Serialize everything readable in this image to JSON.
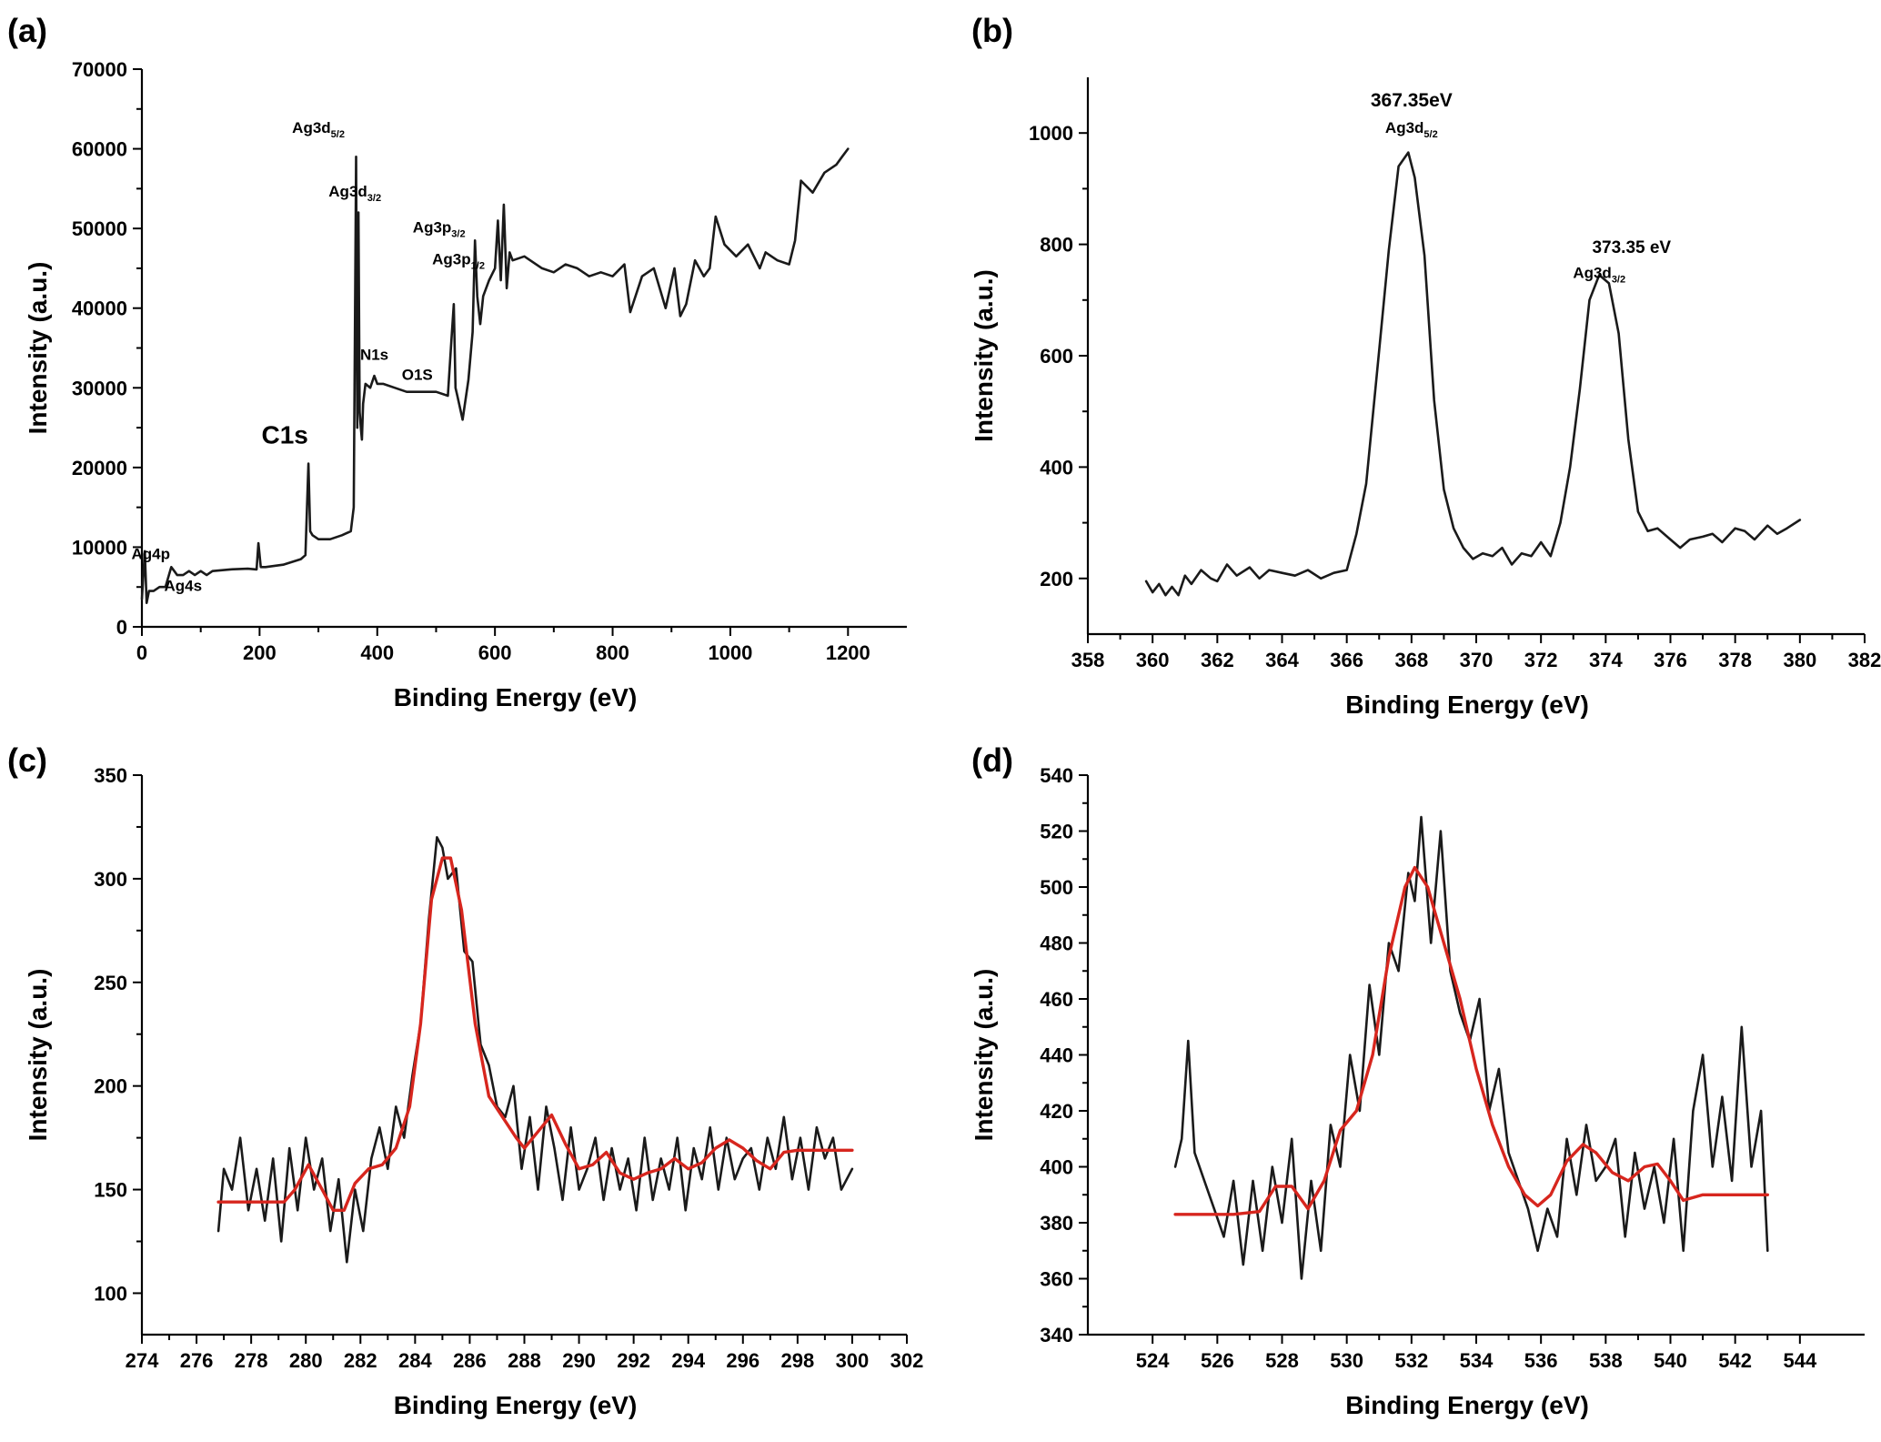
{
  "chart_data": [
    {
      "type": "line",
      "panel": "(a)",
      "xlabel": "Binding Energy (eV)",
      "ylabel": "Intensity (a.u.)",
      "xlim": [
        0,
        1300
      ],
      "ylim": [
        0,
        70000
      ],
      "xticks": [
        0,
        200,
        400,
        600,
        800,
        1000,
        1200
      ],
      "yticks": [
        0,
        10000,
        20000,
        30000,
        40000,
        50000,
        60000,
        70000
      ],
      "annotations": [
        {
          "text": "Ag3d",
          "sub": "5/2",
          "x": 300,
          "y": 62000
        },
        {
          "text": "Ag3d",
          "sub": "3/2",
          "x": 362,
          "y": 54000
        },
        {
          "text": "Ag3p",
          "sub": "3/2",
          "x": 505,
          "y": 49500
        },
        {
          "text": "Ag3p",
          "sub": "1/2",
          "x": 538,
          "y": 45500
        },
        {
          "text": "C1s",
          "x": 243,
          "y": 23000
        },
        {
          "text": "N1s",
          "x": 395,
          "y": 33500
        },
        {
          "text": "O1S",
          "x": 468,
          "y": 31000
        },
        {
          "text": "Ag4p",
          "x": 15,
          "y": 8500
        },
        {
          "text": "Ag4s",
          "x": 70,
          "y": 4500
        }
      ],
      "series": [
        {
          "color": "#1a1a1a",
          "x": [
            0,
            5,
            8,
            12,
            20,
            30,
            40,
            50,
            55,
            60,
            70,
            80,
            90,
            100,
            110,
            120,
            150,
            180,
            195,
            198,
            202,
            210,
            240,
            270,
            278,
            283,
            286,
            290,
            300,
            320,
            340,
            355,
            360,
            364,
            366,
            368,
            370,
            372,
            374,
            376,
            380,
            388,
            395,
            400,
            410,
            430,
            450,
            480,
            500,
            520,
            526,
            530,
            533,
            536,
            545,
            555,
            562,
            566,
            570,
            575,
            580,
            590,
            600,
            605,
            610,
            615,
            620,
            625,
            630,
            650,
            680,
            700,
            720,
            740,
            760,
            780,
            800,
            820,
            830,
            850,
            870,
            890,
            905,
            915,
            925,
            940,
            955,
            965,
            975,
            990,
            1010,
            1030,
            1050,
            1060,
            1080,
            1100,
            1110,
            1120,
            1140,
            1160,
            1180,
            1190,
            1200
          ],
          "y": [
            3500,
            9500,
            3000,
            4500,
            4500,
            5000,
            5000,
            7500,
            7000,
            6500,
            6500,
            7000,
            6500,
            7000,
            6500,
            7000,
            7200,
            7300,
            7200,
            10500,
            7500,
            7500,
            7800,
            8500,
            9000,
            20500,
            12000,
            11500,
            11000,
            11000,
            11500,
            12000,
            15000,
            59000,
            25000,
            52000,
            27000,
            25000,
            23500,
            28000,
            30500,
            30000,
            31500,
            30500,
            30500,
            30000,
            29500,
            29500,
            29500,
            29000,
            36000,
            40500,
            30000,
            29000,
            26000,
            31000,
            37000,
            48500,
            41500,
            38000,
            41500,
            43500,
            45000,
            51000,
            43500,
            53000,
            42500,
            47000,
            46000,
            46500,
            45000,
            44500,
            45500,
            45000,
            44000,
            44500,
            44000,
            45500,
            39500,
            44000,
            45000,
            40000,
            45000,
            39000,
            40500,
            46000,
            44000,
            45000,
            51500,
            48000,
            46500,
            48000,
            45000,
            47000,
            46000,
            45500,
            48500,
            56000,
            54500,
            57000,
            58000,
            59000,
            60000
          ]
        }
      ]
    },
    {
      "type": "line",
      "panel": "(b)",
      "xlabel": "Binding Energy (eV)",
      "ylabel": "Intensity (a.u.)",
      "xlim": [
        358,
        382
      ],
      "ylim": [
        100,
        1100
      ],
      "xticks": [
        358,
        360,
        362,
        364,
        366,
        368,
        370,
        372,
        374,
        376,
        378,
        380,
        382
      ],
      "yticks": [
        200,
        400,
        600,
        800,
        1000
      ],
      "annotations": [
        {
          "text": "367.35eV",
          "x": 368,
          "y": 1048,
          "size": 21
        },
        {
          "text": "Ag3d",
          "sub": "5/2",
          "x": 368,
          "y": 1000
        },
        {
          "text": "373.35 eV",
          "x": 374.8,
          "y": 785,
          "size": 19
        },
        {
          "text": "Ag3d",
          "sub": "3/2",
          "x": 373.8,
          "y": 740
        }
      ],
      "series": [
        {
          "color": "#1a1a1a",
          "x": [
            359.8,
            360.0,
            360.2,
            360.4,
            360.6,
            360.8,
            361.0,
            361.2,
            361.5,
            361.8,
            362.0,
            362.3,
            362.6,
            363.0,
            363.3,
            363.6,
            364.0,
            364.4,
            364.8,
            365.2,
            365.6,
            366.0,
            366.3,
            366.6,
            367.0,
            367.3,
            367.6,
            367.9,
            368.1,
            368.4,
            368.7,
            369.0,
            369.3,
            369.6,
            369.9,
            370.2,
            370.5,
            370.8,
            371.1,
            371.4,
            371.7,
            372.0,
            372.3,
            372.6,
            372.9,
            373.2,
            373.5,
            373.8,
            374.1,
            374.4,
            374.7,
            375.0,
            375.3,
            375.6,
            376.0,
            376.3,
            376.6,
            377.0,
            377.3,
            377.6,
            378.0,
            378.3,
            378.6,
            379.0,
            379.3,
            379.6,
            380.0
          ],
          "y": [
            195,
            175,
            190,
            170,
            185,
            170,
            205,
            190,
            215,
            200,
            195,
            225,
            205,
            220,
            200,
            215,
            210,
            205,
            215,
            200,
            210,
            215,
            280,
            370,
            610,
            790,
            940,
            965,
            920,
            780,
            520,
            360,
            290,
            255,
            235,
            245,
            240,
            255,
            225,
            245,
            240,
            265,
            240,
            300,
            400,
            540,
            700,
            745,
            730,
            640,
            450,
            320,
            285,
            290,
            270,
            255,
            270,
            275,
            280,
            265,
            290,
            285,
            270,
            295,
            280,
            290,
            305
          ]
        }
      ]
    },
    {
      "type": "line",
      "panel": "(c)",
      "xlabel": "Binding Energy (eV)",
      "ylabel": "Intensity (a.u.)",
      "xlim": [
        274,
        302
      ],
      "ylim": [
        80,
        350
      ],
      "xticks": [
        274,
        276,
        278,
        280,
        282,
        284,
        286,
        288,
        290,
        292,
        294,
        296,
        298,
        300,
        302
      ],
      "yticks": [
        100,
        150,
        200,
        250,
        300,
        350
      ],
      "series": [
        {
          "color": "#1a1a1a",
          "x": [
            276.8,
            277.0,
            277.3,
            277.6,
            277.9,
            278.2,
            278.5,
            278.8,
            279.1,
            279.4,
            279.7,
            280.0,
            280.3,
            280.6,
            280.9,
            281.2,
            281.5,
            281.8,
            282.1,
            282.4,
            282.7,
            283.0,
            283.3,
            283.6,
            283.9,
            284.2,
            284.5,
            284.8,
            285.0,
            285.2,
            285.5,
            285.8,
            286.1,
            286.4,
            286.7,
            287.0,
            287.3,
            287.6,
            287.9,
            288.2,
            288.5,
            288.8,
            289.1,
            289.4,
            289.7,
            290.0,
            290.3,
            290.6,
            290.9,
            291.2,
            291.5,
            291.8,
            292.1,
            292.4,
            292.7,
            293.0,
            293.3,
            293.6,
            293.9,
            294.2,
            294.5,
            294.8,
            295.1,
            295.4,
            295.7,
            296.0,
            296.3,
            296.6,
            296.9,
            297.2,
            297.5,
            297.8,
            298.1,
            298.4,
            298.7,
            299.0,
            299.3,
            299.6,
            300.0
          ],
          "y": [
            130,
            160,
            150,
            175,
            140,
            160,
            135,
            165,
            125,
            170,
            140,
            175,
            150,
            165,
            130,
            155,
            115,
            150,
            130,
            165,
            180,
            160,
            190,
            175,
            205,
            230,
            280,
            320,
            315,
            300,
            305,
            265,
            260,
            220,
            210,
            190,
            185,
            200,
            160,
            185,
            150,
            190,
            170,
            145,
            180,
            150,
            160,
            175,
            145,
            170,
            150,
            165,
            140,
            175,
            145,
            165,
            150,
            175,
            140,
            170,
            155,
            180,
            150,
            175,
            155,
            165,
            170,
            150,
            175,
            160,
            185,
            155,
            175,
            150,
            180,
            165,
            175,
            150,
            160
          ]
        },
        {
          "color": "#d7261e",
          "x": [
            276.8,
            278.0,
            279.2,
            279.6,
            280.1,
            280.6,
            281.0,
            281.4,
            281.8,
            282.3,
            282.8,
            283.3,
            283.8,
            284.2,
            284.6,
            285.0,
            285.3,
            285.7,
            286.2,
            286.7,
            287.2,
            287.7,
            288.0,
            288.5,
            289.0,
            289.5,
            290.0,
            290.5,
            291.0,
            291.5,
            292.0,
            292.5,
            293.0,
            293.5,
            294.0,
            294.5,
            295.0,
            295.5,
            296.0,
            296.5,
            297.0,
            297.5,
            298.0,
            299.0,
            300.0
          ],
          "y": [
            144,
            144,
            144,
            150,
            162,
            150,
            140,
            140,
            153,
            160,
            162,
            170,
            190,
            230,
            290,
            310,
            310,
            285,
            230,
            195,
            185,
            175,
            170,
            178,
            186,
            172,
            160,
            162,
            168,
            158,
            155,
            158,
            160,
            165,
            160,
            163,
            170,
            174,
            170,
            164,
            160,
            168,
            169,
            169,
            169
          ]
        }
      ]
    },
    {
      "type": "line",
      "panel": "(d)",
      "xlabel": "Binding Energy (eV)",
      "ylabel": "Intensity (a.u.)",
      "xlim": [
        522,
        546
      ],
      "ylim": [
        340,
        540
      ],
      "xticks": [
        524,
        526,
        528,
        530,
        532,
        534,
        536,
        538,
        540,
        542,
        544
      ],
      "yticks": [
        340,
        360,
        380,
        400,
        420,
        440,
        460,
        480,
        500,
        520,
        540
      ],
      "series": [
        {
          "color": "#1a1a1a",
          "x": [
            524.7,
            524.9,
            525.1,
            525.3,
            525.6,
            525.9,
            526.2,
            526.5,
            526.8,
            527.1,
            527.4,
            527.7,
            528.0,
            528.3,
            528.6,
            528.9,
            529.2,
            529.5,
            529.8,
            530.1,
            530.4,
            530.7,
            531.0,
            531.3,
            531.6,
            531.9,
            532.1,
            532.3,
            532.6,
            532.9,
            533.2,
            533.5,
            533.8,
            534.1,
            534.4,
            534.7,
            535.0,
            535.3,
            535.6,
            535.9,
            536.2,
            536.5,
            536.8,
            537.1,
            537.4,
            537.7,
            538.0,
            538.3,
            538.6,
            538.9,
            539.2,
            539.5,
            539.8,
            540.1,
            540.4,
            540.7,
            541.0,
            541.3,
            541.6,
            541.9,
            542.2,
            542.5,
            542.8,
            543.0
          ],
          "y": [
            400,
            410,
            445,
            405,
            395,
            385,
            375,
            395,
            365,
            395,
            370,
            400,
            380,
            410,
            360,
            395,
            370,
            415,
            400,
            440,
            420,
            465,
            440,
            480,
            470,
            505,
            495,
            525,
            480,
            520,
            470,
            455,
            445,
            460,
            420,
            435,
            405,
            395,
            385,
            370,
            385,
            375,
            410,
            390,
            415,
            395,
            400,
            410,
            375,
            405,
            385,
            400,
            380,
            410,
            370,
            420,
            440,
            400,
            425,
            395,
            450,
            400,
            420,
            370
          ]
        },
        {
          "color": "#d7261e",
          "x": [
            524.7,
            525.5,
            526.5,
            527.3,
            527.8,
            528.3,
            528.8,
            529.3,
            529.8,
            530.3,
            530.8,
            531.3,
            531.8,
            532.1,
            532.5,
            533.0,
            533.5,
            534.0,
            534.5,
            535.0,
            535.5,
            535.9,
            536.3,
            536.8,
            537.3,
            537.7,
            538.2,
            538.7,
            539.2,
            539.6,
            540.0,
            540.4,
            541.0,
            542.0,
            543.0
          ],
          "y": [
            383,
            383,
            383,
            384,
            393,
            393,
            385,
            395,
            413,
            420,
            440,
            475,
            500,
            507,
            500,
            480,
            460,
            435,
            415,
            400,
            390,
            386,
            390,
            402,
            408,
            405,
            398,
            395,
            400,
            401,
            395,
            388,
            390,
            390,
            390
          ]
        }
      ]
    }
  ]
}
